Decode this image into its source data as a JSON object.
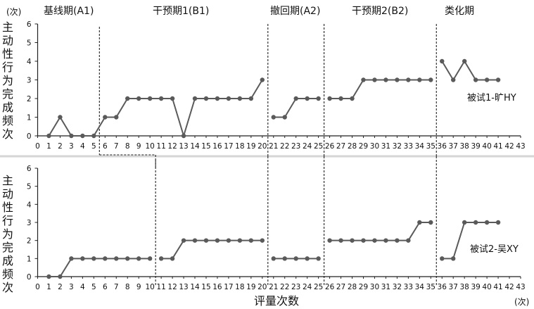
{
  "chart_data": {
    "type": "line",
    "y_unit": "(次)",
    "x_unit": "(次)",
    "xlabel": "评量次数",
    "ylabel": "主动性行为完成频次",
    "x_ticks": [
      "0",
      "1",
      "2",
      "3",
      "4",
      "5",
      "6",
      "7",
      "8",
      "9",
      "10",
      "11",
      "12",
      "13",
      "14",
      "15",
      "16",
      "17",
      "18",
      "19",
      "20",
      "21",
      "22",
      "23",
      "24",
      "25",
      "26",
      "27",
      "28",
      "29",
      "30",
      "31",
      "32",
      "33",
      "34",
      "35",
      "36",
      "37",
      "38",
      "39",
      "40",
      "41",
      "42",
      "43"
    ],
    "ylim": [
      0,
      6
    ],
    "xlim": [
      0,
      43
    ],
    "phases": [
      {
        "label": "基线期(A1)"
      },
      {
        "label": "干预期1(B1)"
      },
      {
        "label": "撤回期(A2)"
      },
      {
        "label": "干预期2(B2)"
      },
      {
        "label": "类化期"
      }
    ],
    "panels": [
      {
        "name": "被试1-旷HY",
        "y_ticks": [
          "0",
          "1",
          "2",
          "3",
          "4",
          "5",
          "6"
        ],
        "phase_lines": [
          5.5,
          20.5,
          25.5,
          35.5
        ],
        "x": [
          1,
          2,
          3,
          4,
          5,
          6,
          7,
          8,
          9,
          10,
          11,
          12,
          13,
          14,
          15,
          16,
          17,
          18,
          19,
          20,
          21,
          22,
          23,
          24,
          25,
          26,
          27,
          28,
          29,
          30,
          31,
          32,
          33,
          34,
          35,
          36,
          37,
          38,
          39,
          40,
          41
        ],
        "values": [
          0,
          1,
          0,
          0,
          0,
          1,
          1,
          2,
          2,
          2,
          2,
          2,
          0,
          2,
          2,
          2,
          2,
          2,
          2,
          3,
          1,
          1,
          2,
          2,
          2,
          2,
          2,
          2,
          3,
          3,
          3,
          3,
          3,
          3,
          3,
          4,
          3,
          4,
          3,
          3,
          3
        ]
      },
      {
        "name": "被试2-吴XY",
        "y_ticks": [
          "0",
          "1",
          "2",
          "3",
          "4",
          "5",
          "6"
        ],
        "phase_lines": [
          10.5,
          20.5,
          25.5,
          35.5
        ],
        "x": [
          1,
          2,
          3,
          4,
          5,
          6,
          7,
          8,
          9,
          10,
          11,
          12,
          13,
          14,
          15,
          16,
          17,
          18,
          19,
          20,
          21,
          22,
          23,
          24,
          25,
          26,
          27,
          28,
          29,
          30,
          31,
          32,
          33,
          34,
          35,
          36,
          37,
          38,
          39,
          40,
          41
        ],
        "values": [
          0,
          0,
          1,
          1,
          1,
          1,
          1,
          1,
          1,
          1,
          1,
          1,
          2,
          2,
          2,
          2,
          2,
          2,
          2,
          2,
          1,
          1,
          1,
          1,
          1,
          2,
          2,
          2,
          2,
          2,
          2,
          2,
          2,
          3,
          3,
          1,
          1,
          3,
          3,
          3,
          3
        ]
      }
    ]
  },
  "colors": {
    "line": "#5a5a5a",
    "marker": "#5a5a5a",
    "axis": "#222222",
    "phase_line": "#222222",
    "separator": "#d0d0d0"
  }
}
